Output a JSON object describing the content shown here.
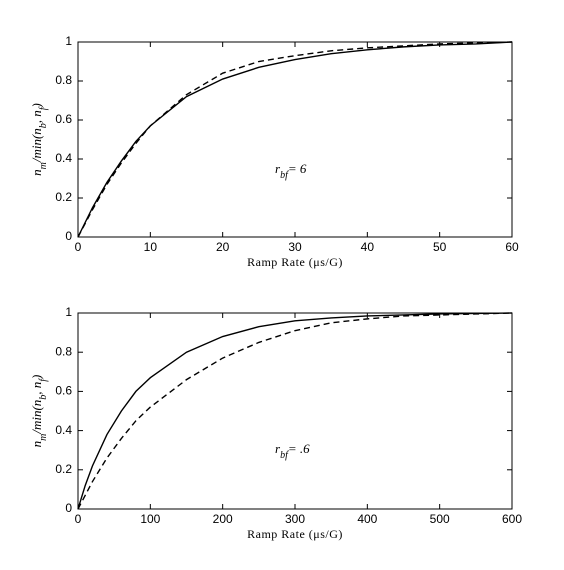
{
  "chart_data": [
    {
      "type": "line",
      "ylabel": [
        {
          "t": "n"
        },
        {
          "t": "m",
          "sub": true
        },
        {
          "t": "/min(n"
        },
        {
          "t": "b",
          "sub": true
        },
        {
          "t": ", n"
        },
        {
          "t": "f",
          "sub": true
        },
        {
          "t": ")"
        }
      ],
      "xlabel": "Ramp Rate (μs/G)",
      "annotation": [
        {
          "t": "r"
        },
        {
          "t": "bf",
          "sub": true
        },
        {
          "t": "= 6"
        }
      ],
      "x": [
        0,
        2,
        4,
        6,
        8,
        10,
        15,
        20,
        25,
        30,
        35,
        40,
        45,
        50,
        55,
        60
      ],
      "series": [
        {
          "color": "#000000",
          "style": "solid",
          "values": [
            0,
            0.15,
            0.28,
            0.39,
            0.49,
            0.57,
            0.72,
            0.81,
            0.87,
            0.91,
            0.94,
            0.96,
            0.975,
            0.985,
            0.99,
            1.0
          ]
        },
        {
          "color": "#000000",
          "style": "dashed",
          "values": [
            0,
            0.14,
            0.27,
            0.38,
            0.48,
            0.57,
            0.73,
            0.84,
            0.9,
            0.93,
            0.955,
            0.97,
            0.98,
            0.99,
            0.995,
            1.0
          ]
        }
      ],
      "xlim": [
        0,
        60
      ],
      "xticks": [
        0,
        10,
        20,
        30,
        40,
        50,
        60
      ],
      "ylim": [
        0,
        1
      ],
      "yticks": [
        0,
        0.2,
        0.4,
        0.6,
        0.8,
        1
      ]
    },
    {
      "type": "line",
      "ylabel": [
        {
          "t": "n"
        },
        {
          "t": "m",
          "sub": true
        },
        {
          "t": "/min(n"
        },
        {
          "t": "b",
          "sub": true
        },
        {
          "t": ", n"
        },
        {
          "t": "f",
          "sub": true
        },
        {
          "t": ")"
        }
      ],
      "xlabel": "Ramp Rate (μs/G)",
      "annotation": [
        {
          "t": "r"
        },
        {
          "t": "bf",
          "sub": true
        },
        {
          "t": "= .6"
        }
      ],
      "x": [
        0,
        10,
        20,
        40,
        60,
        80,
        100,
        150,
        200,
        250,
        300,
        350,
        400,
        450,
        500,
        550,
        600
      ],
      "series": [
        {
          "color": "#000000",
          "style": "solid",
          "values": [
            0,
            0.12,
            0.22,
            0.38,
            0.5,
            0.6,
            0.67,
            0.8,
            0.88,
            0.93,
            0.96,
            0.975,
            0.985,
            0.99,
            0.995,
            0.998,
            1.0
          ]
        },
        {
          "color": "#000000",
          "style": "dashed",
          "values": [
            0,
            0.07,
            0.14,
            0.26,
            0.36,
            0.45,
            0.52,
            0.66,
            0.77,
            0.85,
            0.91,
            0.95,
            0.97,
            0.985,
            0.99,
            0.995,
            1.0
          ]
        }
      ],
      "xlim": [
        0,
        600
      ],
      "xticks": [
        0,
        100,
        200,
        300,
        400,
        500,
        600
      ],
      "ylim": [
        0,
        1
      ],
      "yticks": [
        0,
        0.2,
        0.4,
        0.6,
        0.8,
        1
      ]
    }
  ]
}
